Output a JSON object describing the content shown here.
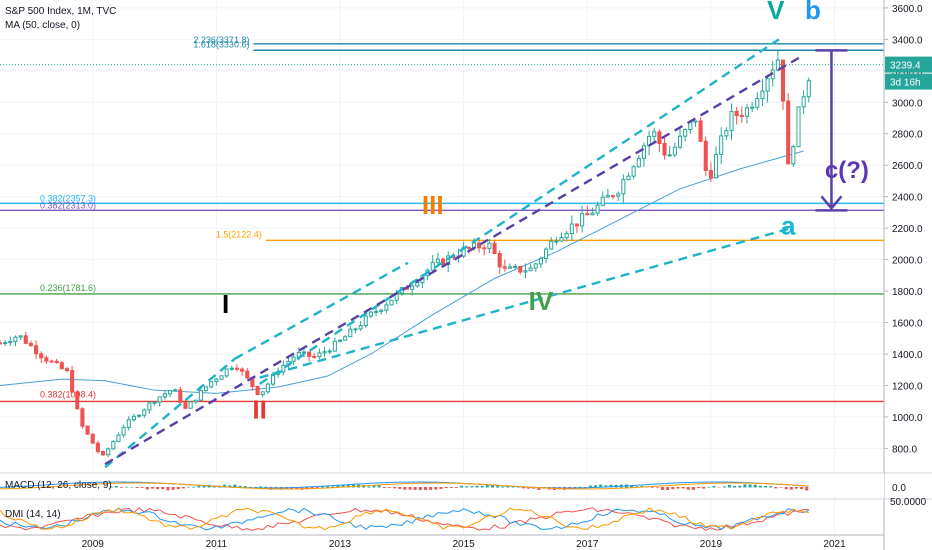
{
  "header": {
    "title": "S&P 500 Index, 1M, TVC",
    "ma_label": "MA (50, close, 0)"
  },
  "price_panel": {
    "last_price": "3239.4",
    "countdown": "3d 16h"
  },
  "indicators": {
    "macd_label": "MACD (12, 26, close, 9)",
    "macd_tick": "0.0",
    "dmi_label": "DMI (14, 14)",
    "dmi_tick": "50.0000"
  },
  "colors": {
    "up": "#26a69a",
    "down": "#ef5350",
    "ma": "#4a9fd8",
    "wave_dash": "#1fb3c9",
    "wave_purple": "#5b3fa8",
    "fib_red": "#e53935",
    "fib_green": "#43a047",
    "fib_orange": "#ffa000",
    "fib_blue": "#29b6f6",
    "fib_purple": "#7e57c2",
    "fib_teal": "#1e88a8",
    "label_black": "#000000",
    "label_red": "#e53935",
    "label_orange": "#f57c00",
    "label_green": "#43a047",
    "label_teal": "#0aa89e",
    "label_cyan": "#16b8d8",
    "label_blue": "#2196f3",
    "label_purple": "#5e35b1"
  },
  "chart_data": {
    "type": "candlestick",
    "price_axis": {
      "ticks": [
        "3600.0",
        "3400.0",
        "3200.0",
        "3000.0",
        "2800.0",
        "2600.0",
        "2400.0",
        "2200.0",
        "2000.0",
        "1800.0",
        "1600.0",
        "1400.0",
        "1200.0",
        "1000.0",
        "800.0"
      ],
      "ylim": [
        650,
        3650
      ]
    },
    "time_axis": {
      "ticks": [
        "2009",
        "2011",
        "2013",
        "2015",
        "2017",
        "2019",
        "2021"
      ],
      "xlim": [
        2007.5,
        2021.8
      ]
    },
    "fib_levels": [
      {
        "label": "2.236(3371.8)",
        "value": 3371.8,
        "color": "fib_teal"
      },
      {
        "label": "1.618(3330.6)",
        "value": 3330.6,
        "color": "fib_teal"
      },
      {
        "label": "0.382(2357.3)",
        "value": 2357.3,
        "color": "fib_blue"
      },
      {
        "label": "0.382(2313.0)",
        "value": 2313.0,
        "color": "fib_purple"
      },
      {
        "label": "1.5(2122.4)",
        "value": 2122.4,
        "color": "fib_orange"
      },
      {
        "label": "0.236(1781.6)",
        "value": 1781.6,
        "color": "fib_green"
      },
      {
        "label": "0.382(1098.4)",
        "value": 1098.4,
        "color": "fib_red"
      }
    ],
    "wave_labels": [
      {
        "text": "I",
        "t": 2011.15,
        "v": 1660,
        "color": "label_black"
      },
      {
        "text": "II",
        "t": 2011.7,
        "v": 990,
        "color": "label_red"
      },
      {
        "text": "III",
        "t": 2014.5,
        "v": 2290,
        "color": "label_orange"
      },
      {
        "text": "IV",
        "t": 2016.25,
        "v": 1680,
        "color": "label_green"
      },
      {
        "text": "V",
        "t": 2020.05,
        "v": 3530,
        "color": "label_teal"
      },
      {
        "text": "a",
        "t": 2020.25,
        "v": 2160,
        "color": "label_cyan"
      },
      {
        "text": "b",
        "t": 2020.65,
        "v": 3530,
        "color": "label_blue"
      },
      {
        "text": "c(?)",
        "t": 2021.2,
        "v": 2520,
        "color": "label_purple"
      }
    ],
    "trend_lines": [
      {
        "from": [
          2009.2,
          680
        ],
        "to": [
          2011.3,
          1370
        ],
        "color": "wave_dash"
      },
      {
        "from": [
          2011.3,
          1370
        ],
        "to": [
          2014.1,
          1980
        ],
        "color": "wave_dash"
      },
      {
        "from": [
          2011.7,
          1210
        ],
        "to": [
          2020.1,
          3400
        ],
        "color": "wave_dash"
      },
      {
        "from": [
          2009.2,
          700
        ],
        "to": [
          2020.5,
          3300
        ],
        "color": "wave_purple"
      },
      {
        "from": [
          2011.7,
          1250
        ],
        "to": [
          2020.3,
          2200
        ],
        "color": "wave_dash"
      }
    ],
    "projection_arrow": {
      "from": 3330,
      "to": 2313,
      "t": 2020.95,
      "color": "wave_purple"
    },
    "ma50": [
      [
        2007.5,
        1200
      ],
      [
        2008.5,
        1240
      ],
      [
        2009.2,
        1230
      ],
      [
        2010.0,
        1170
      ],
      [
        2011.0,
        1150
      ],
      [
        2012.0,
        1190
      ],
      [
        2012.8,
        1260
      ],
      [
        2013.5,
        1400
      ],
      [
        2014.5,
        1650
      ],
      [
        2015.5,
        1880
      ],
      [
        2016.5,
        2050
      ],
      [
        2017.5,
        2250
      ],
      [
        2018.5,
        2450
      ],
      [
        2019.5,
        2580
      ],
      [
        2020.5,
        2690
      ]
    ],
    "price_path": [
      [
        2007.5,
        1470
      ],
      [
        2007.8,
        1520
      ],
      [
        2008.2,
        1380
      ],
      [
        2008.6,
        1280
      ],
      [
        2008.8,
        960
      ],
      [
        2009.15,
        740
      ],
      [
        2009.5,
        940
      ],
      [
        2010.0,
        1110
      ],
      [
        2010.3,
        1180
      ],
      [
        2010.5,
        1050
      ],
      [
        2010.9,
        1220
      ],
      [
        2011.3,
        1340
      ],
      [
        2011.7,
        1140
      ],
      [
        2012.0,
        1300
      ],
      [
        2012.3,
        1400
      ],
      [
        2012.6,
        1380
      ],
      [
        2013.0,
        1480
      ],
      [
        2013.5,
        1650
      ],
      [
        2014.0,
        1800
      ],
      [
        2014.5,
        1960
      ],
      [
        2015.0,
        2060
      ],
      [
        2015.4,
        2100
      ],
      [
        2015.65,
        1930
      ],
      [
        2016.1,
        1940
      ],
      [
        2016.5,
        2150
      ],
      [
        2017.0,
        2280
      ],
      [
        2017.5,
        2450
      ],
      [
        2018.05,
        2820
      ],
      [
        2018.3,
        2650
      ],
      [
        2018.75,
        2900
      ],
      [
        2018.95,
        2500
      ],
      [
        2019.3,
        2900
      ],
      [
        2019.6,
        2960
      ],
      [
        2020.0,
        3230
      ],
      [
        2020.12,
        3300
      ],
      [
        2020.25,
        2580
      ],
      [
        2020.4,
        2900
      ],
      [
        2020.55,
        3140
      ],
      [
        2020.65,
        3239
      ]
    ]
  }
}
